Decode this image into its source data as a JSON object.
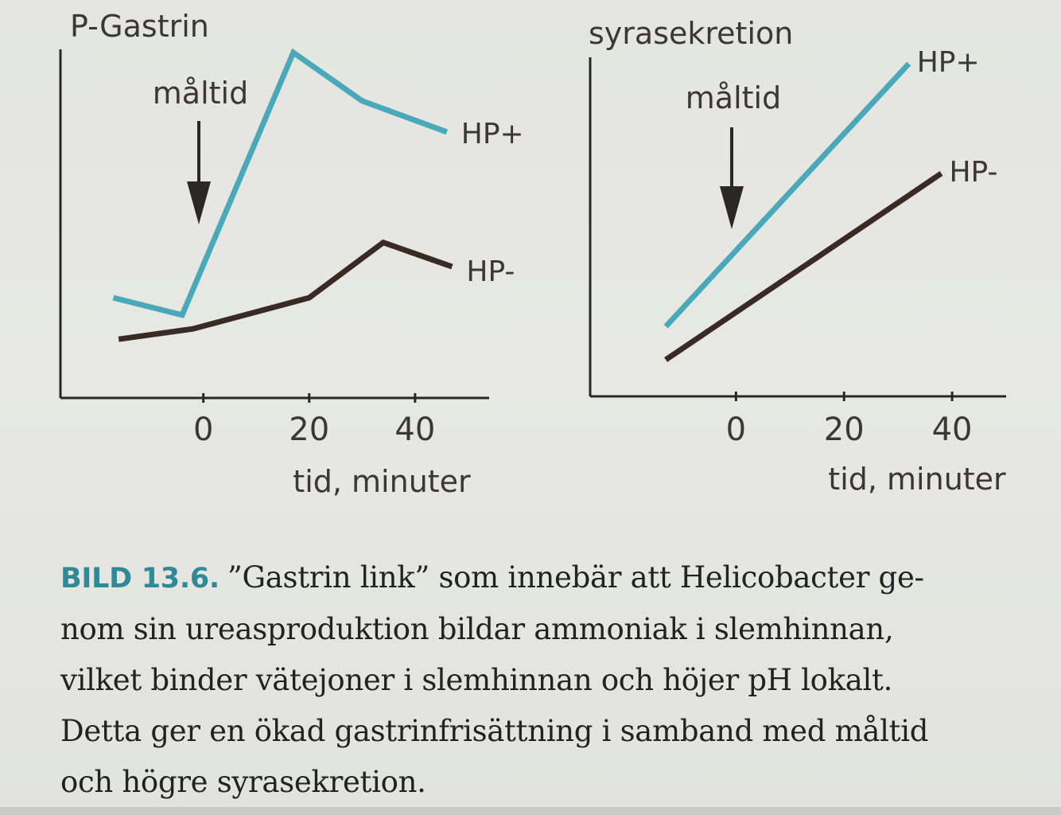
{
  "colors": {
    "hp_plus": "#4aa9b9",
    "hp_minus": "#3a2a25",
    "axis": "#2a2826",
    "caption_lead": "#2f8a98"
  },
  "chart_data": [
    {
      "type": "line",
      "title": "P-Gastrin",
      "xlabel": "tid, minuter",
      "ylabel": "",
      "xlim": [
        -27,
        54
      ],
      "ylim": [
        0,
        100
      ],
      "x_ticks": [
        0,
        20,
        40
      ],
      "annotation": {
        "text": "måltid",
        "x": 0,
        "arrow": "down"
      },
      "series": [
        {
          "name": "HP+",
          "color": "#4aa9b9",
          "x": [
            -17,
            -4,
            17,
            30,
            46
          ],
          "y": [
            29,
            24,
            100,
            86,
            77
          ]
        },
        {
          "name": "HP-",
          "color": "#3a2a25",
          "x": [
            -16,
            -2,
            20,
            34,
            47
          ],
          "y": [
            17,
            20,
            29,
            45,
            38
          ]
        }
      ]
    },
    {
      "type": "line",
      "title": "syrasekretion",
      "xlabel": "tid, minuter",
      "ylabel": "",
      "xlim": [
        -27,
        50
      ],
      "ylim": [
        0,
        100
      ],
      "x_ticks": [
        0,
        20,
        40
      ],
      "annotation": {
        "text": "måltid",
        "x": 0,
        "arrow": "down"
      },
      "series": [
        {
          "name": "HP+",
          "color": "#4aa9b9",
          "x": [
            -13,
            32
          ],
          "y": [
            21,
            100
          ]
        },
        {
          "name": "HP-",
          "color": "#3a2a25",
          "x": [
            -13,
            38
          ],
          "y": [
            11,
            67
          ]
        }
      ]
    }
  ],
  "caption": {
    "lead": "BILD 13.6.",
    "lines": [
      "”Gastrin link” som innebär att Helicobacter ge-",
      "nom sin ureasproduktion bildar ammoniak i slemhinnan,",
      "vilket binder vätejoner i slemhinnan och höjer pH lokalt.",
      "Detta ger en ökad gastrinfrisättning i samband med måltid",
      "och högre syrasekretion."
    ]
  }
}
